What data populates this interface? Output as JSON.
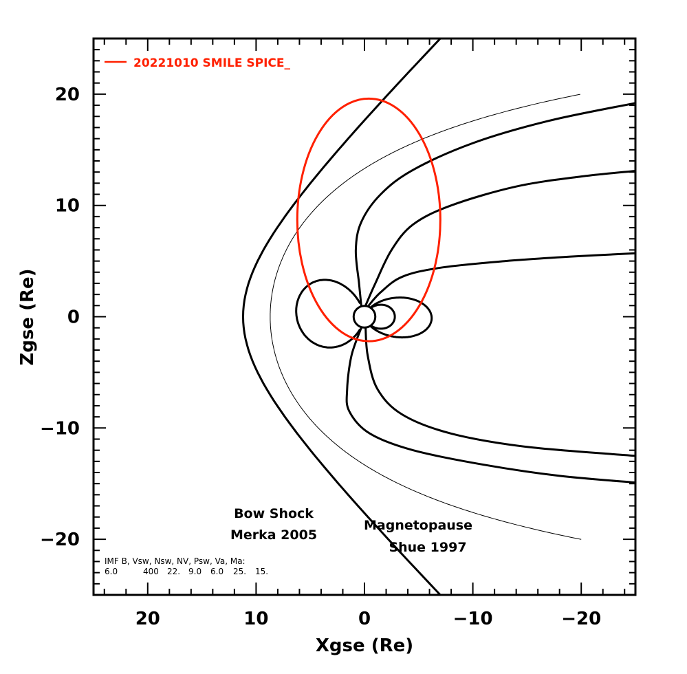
{
  "chart_data": {
    "type": "line",
    "title": "",
    "xlabel": "Xgse (Re)",
    "ylabel": "Zgse (Re)",
    "xlim": [
      25,
      -25
    ],
    "ylim": [
      -25,
      25
    ],
    "x_major_ticks": [
      20,
      10,
      0,
      -10,
      -20
    ],
    "x_tick_labels": [
      "20",
      "10",
      "0",
      "−10",
      "−20"
    ],
    "x_minor_step": 2,
    "y_major_ticks": [
      20,
      10,
      0,
      -10,
      -20
    ],
    "y_tick_labels": [
      "20",
      "10",
      "0",
      "−10",
      "−20"
    ],
    "y_minor_step": 1,
    "grid": false,
    "legend": {
      "position": "top-left",
      "entries": [
        {
          "label": "20221010 SMILE SPICE_",
          "color": "#ff2000"
        }
      ]
    },
    "colors": {
      "orbit": "#ff2000",
      "lines": "#000000"
    },
    "earth": {
      "center": [
        0,
        0
      ],
      "radius": 1
    },
    "bow_shock": {
      "name": "Bow Shock",
      "model": "Merka 2005",
      "nose_x": 11.2,
      "flank_x_at_z25": -7.0
    },
    "magnetopause": {
      "name": "Magnetopause",
      "model": "Shue 1997",
      "nose_x": 8.7,
      "tail_end": [
        -20,
        20
      ]
    },
    "orbit": {
      "name": "20221010 SMILE SPICE_",
      "center": [
        -0.4,
        8.7
      ],
      "semi_x": 6.6,
      "semi_z": 10.9
    },
    "field_lines": [
      {
        "name": "open-north-outer",
        "points": [
          [
            0.3,
            1.0
          ],
          [
            0.5,
            3
          ],
          [
            0.8,
            6
          ],
          [
            0.3,
            8.5
          ],
          [
            -1.5,
            11
          ],
          [
            -4.5,
            13.2
          ],
          [
            -10,
            15.6
          ],
          [
            -17,
            17.6
          ],
          [
            -25,
            19.2
          ]
        ]
      },
      {
        "name": "open-north-middle",
        "points": [
          [
            -0.1,
            1.0
          ],
          [
            -1,
            3
          ],
          [
            -2.5,
            6
          ],
          [
            -4.5,
            8.3
          ],
          [
            -8,
            10
          ],
          [
            -14,
            11.7
          ],
          [
            -20,
            12.6
          ],
          [
            -25,
            13.1
          ]
        ]
      },
      {
        "name": "open-north-inner",
        "points": [
          [
            -0.3,
            0.9
          ],
          [
            -1.5,
            2.2
          ],
          [
            -3.5,
            3.6
          ],
          [
            -7,
            4.4
          ],
          [
            -13,
            5.0
          ],
          [
            -19,
            5.4
          ],
          [
            -25,
            5.7
          ]
        ]
      },
      {
        "name": "open-south-outer",
        "points": [
          [
            0.3,
            -1.0
          ],
          [
            1.2,
            -3.5
          ],
          [
            1.6,
            -6.5
          ],
          [
            1.4,
            -8.5
          ],
          [
            -0.5,
            -10.5
          ],
          [
            -4.5,
            -12.0
          ],
          [
            -11,
            -13.3
          ],
          [
            -18,
            -14.3
          ],
          [
            -25,
            -14.9
          ]
        ]
      },
      {
        "name": "open-south-inner",
        "points": [
          [
            -0.1,
            -1.0
          ],
          [
            -0.3,
            -3.5
          ],
          [
            -1.2,
            -6.5
          ],
          [
            -3.5,
            -8.8
          ],
          [
            -8,
            -10.5
          ],
          [
            -15,
            -11.7
          ],
          [
            -25,
            -12.5
          ]
        ]
      }
    ],
    "closed_loops": [
      {
        "name": "dayside-loop",
        "extent_x": [
          6.3,
          0
        ],
        "extent_z": [
          -1.9,
          3.0
        ]
      },
      {
        "name": "nightside-loop-inner",
        "extent_x": [
          0,
          -2.8
        ],
        "extent_z": [
          -1.2,
          1.2
        ]
      },
      {
        "name": "nightside-loop-outer",
        "extent_x": [
          0,
          -6.2
        ],
        "extent_z": [
          -2.0,
          1.8
        ]
      }
    ],
    "annotations": [
      {
        "lines": [
          "Bow Shock",
          "Merka 2005"
        ],
        "at": [
          7.2,
          -18.5
        ]
      },
      {
        "lines": [
          "Magnetopause",
          "Shue 1997"
        ],
        "at": [
          -4.5,
          -19.5
        ]
      }
    ],
    "parameters": {
      "header": "IMF B, Vsw, Nsw, NV, Psw, Va, Ma:",
      "values": [
        "6.0",
        "400",
        "22.",
        "9.0",
        "6.0",
        "25.",
        "15."
      ]
    }
  }
}
